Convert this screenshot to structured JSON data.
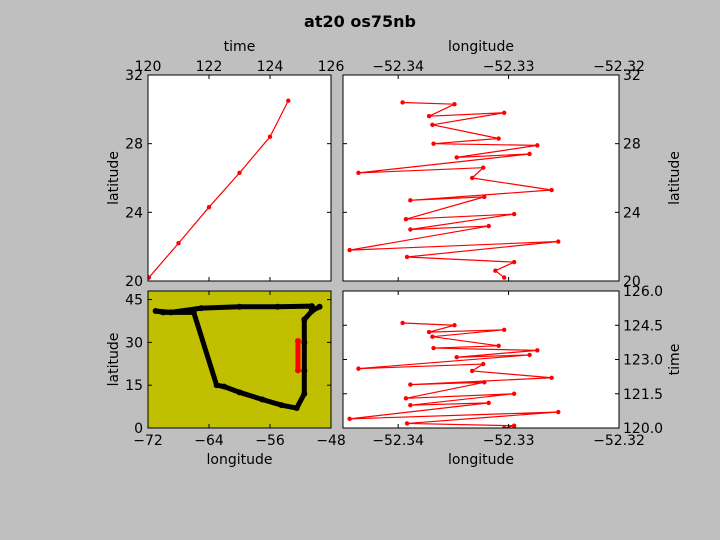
{
  "figure": {
    "title": "at20 os75nb",
    "background": "#bfbfbf",
    "track_color": "#ff0000",
    "map_color": "#c0c000",
    "cruise_color": "#000000"
  },
  "chart_data": [
    {
      "id": "time-lat",
      "type": "line",
      "xlabel": "time",
      "ylabel": "latitude",
      "xaxis_position": "top",
      "yaxis_position": "left",
      "xlim": [
        120,
        126
      ],
      "ylim": [
        20,
        32
      ],
      "xticks": [
        "120",
        "122",
        "124",
        "126"
      ],
      "yticks": [
        "20",
        "24",
        "28",
        "32"
      ],
      "grid": false,
      "series": [
        {
          "marker": "circle",
          "color": "#ff0000",
          "x": [
            120.03,
            121.0,
            122.0,
            123.0,
            124.0,
            124.6
          ],
          "y": [
            20.2,
            22.2,
            24.3,
            26.3,
            28.4,
            30.5
          ]
        }
      ]
    },
    {
      "id": "lon-lat",
      "type": "line",
      "xlabel": "longitude",
      "ylabel": "latitude",
      "xaxis_position": "top",
      "yaxis_position": "right",
      "xlim": [
        -52.345,
        -52.32
      ],
      "ylim": [
        20,
        32
      ],
      "xticks": [
        "−52.34",
        "−52.33",
        "−52.32"
      ],
      "yticks": [
        "20",
        "24",
        "28",
        "32"
      ],
      "grid": false,
      "series": [
        {
          "marker": "circle",
          "color": "#ff0000",
          "x": [
            -52.3396,
            -52.3349,
            -52.3372,
            -52.3304,
            -52.3369,
            -52.3309,
            -52.3368,
            -52.3274,
            -52.3347,
            -52.3281,
            -52.3436,
            -52.3323,
            -52.3333,
            -52.3261,
            -52.3389,
            -52.3322,
            -52.3393,
            -52.3295,
            -52.3389,
            -52.3318,
            -52.3444,
            -52.3255,
            -52.3392,
            -52.3295,
            -52.3312,
            -52.3304
          ],
          "y": [
            30.4,
            30.3,
            29.6,
            29.8,
            29.1,
            28.3,
            28.0,
            27.9,
            27.2,
            27.4,
            26.3,
            26.6,
            26.0,
            25.3,
            24.7,
            24.9,
            23.6,
            23.9,
            23.0,
            23.2,
            21.8,
            22.3,
            21.4,
            21.1,
            20.6,
            20.2
          ]
        }
      ]
    },
    {
      "id": "map",
      "type": "scatter",
      "xlabel": "longitude",
      "ylabel": "latitude",
      "xaxis_position": "bottom",
      "yaxis_position": "left",
      "xlim": [
        -72,
        -48
      ],
      "ylim": [
        0,
        48
      ],
      "xticks": [
        "−72",
        "−64",
        "−56",
        "−48"
      ],
      "yticks": [
        "0",
        "15",
        "30",
        "45"
      ],
      "grid": false,
      "series": [
        {
          "marker": "circle",
          "color": "#000000",
          "x": [
            -49.5,
            -50.5,
            -51.5,
            -51.5,
            -51.5,
            -51.5,
            -52.5,
            -54.5,
            -57.0,
            -60.0,
            -62.0,
            -63.0,
            -66.0,
            -70.0,
            -71.0,
            -69.0,
            -65.0,
            -60.0,
            -55.0,
            -50.5,
            -50.6
          ],
          "y": [
            42.5,
            41.0,
            38.0,
            30.0,
            20.0,
            12.0,
            7.0,
            8.0,
            10.0,
            12.5,
            14.5,
            15.0,
            40.5,
            40.5,
            41.0,
            40.5,
            42.0,
            42.5,
            42.5,
            42.7,
            42.2
          ]
        },
        {
          "marker": "circle",
          "color": "#ff0000",
          "x": [
            -52.33,
            -52.33
          ],
          "y": [
            20.2,
            30.5
          ]
        }
      ]
    },
    {
      "id": "lon-time",
      "type": "line",
      "xlabel": "longitude",
      "ylabel": "time",
      "xaxis_position": "bottom",
      "yaxis_position": "right",
      "xlim": [
        -52.345,
        -52.32
      ],
      "ylim": [
        120,
        126
      ],
      "xticks": [
        "−52.34",
        "−52.33",
        "−52.32"
      ],
      "yticks": [
        "120.0",
        "121.5",
        "123.0",
        "124.5",
        "126.0"
      ],
      "grid": false,
      "series": [
        {
          "marker": "circle",
          "color": "#ff0000",
          "x": [
            -52.3396,
            -52.3349,
            -52.3372,
            -52.3304,
            -52.3369,
            -52.3309,
            -52.3368,
            -52.3274,
            -52.3347,
            -52.3281,
            -52.3436,
            -52.3323,
            -52.3333,
            -52.3261,
            -52.3389,
            -52.3322,
            -52.3393,
            -52.3295,
            -52.3389,
            -52.3318,
            -52.3444,
            -52.3255,
            -52.3392,
            -52.3295,
            -52.3312,
            -52.3304
          ],
          "y": [
            124.6,
            124.5,
            124.2,
            124.3,
            124.0,
            123.6,
            123.5,
            123.4,
            123.1,
            123.2,
            122.6,
            122.8,
            122.5,
            122.2,
            121.9,
            122.0,
            121.3,
            121.5,
            121.0,
            121.1,
            120.4,
            120.7,
            120.2,
            120.1,
            119.9,
            120.0
          ]
        }
      ]
    }
  ]
}
